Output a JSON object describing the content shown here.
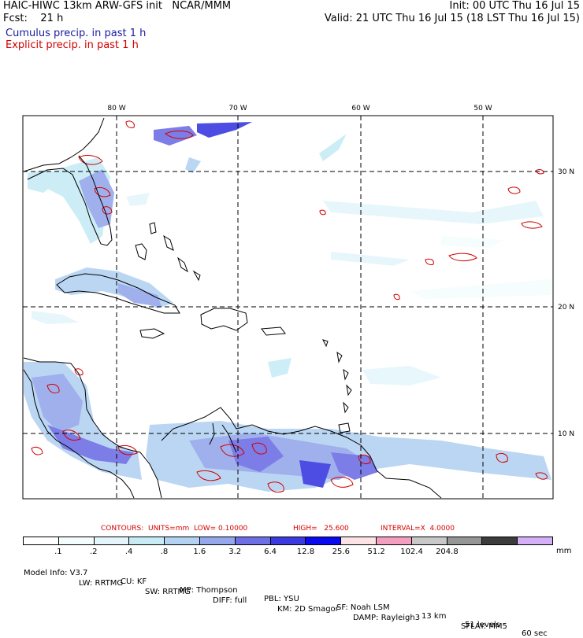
{
  "header": {
    "title": "HAIC-HIWC 13km ARW-GFS init   NCAR/MMM",
    "init": "Init: 00 UTC Thu 16 Jul 15",
    "fcst": "Fcst:    21 h",
    "valid": "Valid: 21 UTC Thu 16 Jul 15 (18 LST Thu 16 Jul 15)",
    "cumulus": "Cumulus precip. in past 1 h",
    "explicit": "Explicit precip. in past 1 h",
    "cumulus_color": "#1a1aa0",
    "explicit_color": "#d40000"
  },
  "map": {
    "lon_labels": [
      "80 W",
      "70 W",
      "60 W",
      "50 W"
    ],
    "lat_labels": [
      "30 N",
      "20 N",
      "10 N"
    ],
    "lon_range": [
      -87.5,
      -45.5
    ],
    "lat_range": [
      5,
      34.5
    ]
  },
  "contours": {
    "label": "CONTOURS:  UNITS=mm  LOW= 0.10000",
    "high": "HIGH=   25.600",
    "interval": "INTERVAL=X  4.0000"
  },
  "colorbar": {
    "colors": [
      "#ffffff",
      "#f4fdfd",
      "#e4f6fb",
      "#c8ecf6",
      "#b4d2f2",
      "#96a8ec",
      "#6e6fe4",
      "#3a3ae0",
      "#0a0af0",
      "#fde2e6",
      "#f49ec0",
      "#c8c8c8",
      "#969696",
      "#3c3c3c",
      "#d4aef6"
    ],
    "ticks": [
      ".1",
      ".2",
      ".4",
      ".8",
      "1.6",
      "3.2",
      "6.4",
      "12.8",
      "25.6",
      "51.2",
      "102.4",
      "204.8"
    ],
    "units": "mm"
  },
  "model_info": {
    "line1": [
      "Model Info: V3.7",
      "CU: KF",
      "MP: Thompson",
      "PBL: YSU",
      "SF: Noah LSM",
      "13 km",
      "51 levels",
      "60 sec"
    ],
    "line2": [
      "LW: RRTMG",
      "SW: RRTMG",
      "DIFF: full",
      "KM: 2D Smagor",
      "DAMP: Rayleigh3",
      "SFLAY: MM5"
    ]
  }
}
